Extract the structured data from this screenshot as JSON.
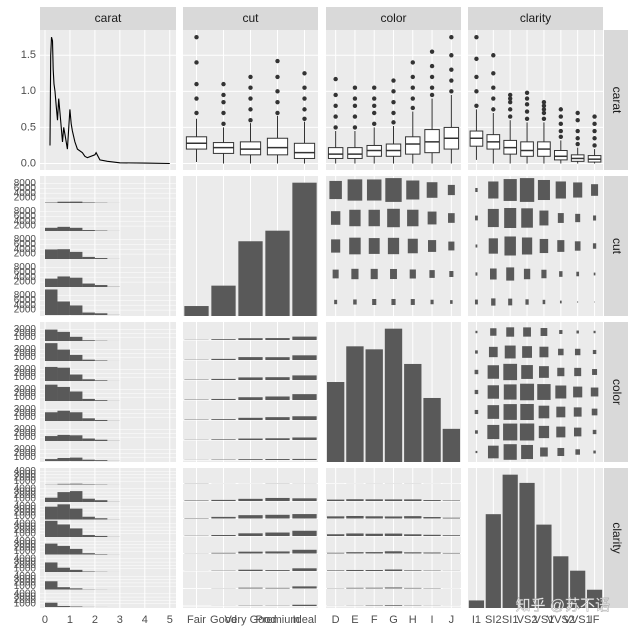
{
  "chart_data": {
    "type": "pairs",
    "variables": [
      "carat",
      "cut",
      "color",
      "clarity"
    ],
    "levels": {
      "cut": [
        "Fair",
        "Good",
        "Very Good",
        "Premium",
        "Ideal"
      ],
      "color": [
        "D",
        "E",
        "F",
        "G",
        "H",
        "I",
        "J"
      ],
      "clarity": [
        "I1",
        "SI2",
        "SI1",
        "VS2",
        "VS1",
        "VVS2",
        "VVS1",
        "IF"
      ]
    },
    "carat_axis": {
      "xlim": [
        -0.2,
        5.25
      ],
      "xticks": [
        0,
        1,
        2,
        3,
        4,
        5
      ]
    },
    "density": {
      "x": [
        0.2,
        0.23,
        0.26,
        0.3,
        0.33,
        0.36,
        0.4,
        0.45,
        0.5,
        0.55,
        0.6,
        0.7,
        0.75,
        0.8,
        0.9,
        1.0,
        1.05,
        1.1,
        1.2,
        1.3,
        1.5,
        1.6,
        1.7,
        2.0,
        2.05,
        2.2,
        2.5,
        3,
        4,
        5
      ],
      "y": [
        0.25,
        1.5,
        1.75,
        1.7,
        1.3,
        1.1,
        1.0,
        0.8,
        0.6,
        0.9,
        0.7,
        0.3,
        0.5,
        0.4,
        0.2,
        0.75,
        0.55,
        0.45,
        0.3,
        0.2,
        0.15,
        0.1,
        0.08,
        0.12,
        0.15,
        0.05,
        0.03,
        0.01,
        0.005,
        0
      ],
      "ylim": [
        -0.09,
        1.85
      ],
      "yticks": [
        {
          "value": 0,
          "label": "0.0"
        },
        0.5,
        {
          "value": 1,
          "label": "1.0"
        },
        1.5
      ]
    },
    "boxplots": {
      "cut": [
        {
          "q1": 0.2,
          "median": 0.28,
          "q3": 0.37,
          "low": 0.02,
          "high": 0.62,
          "outliers": [
            0.7,
            0.9,
            1.1,
            1.4,
            1.75
          ]
        },
        {
          "q1": 0.14,
          "median": 0.22,
          "q3": 0.29,
          "low": 0,
          "high": 0.5,
          "outliers": [
            0.55,
            0.7,
            0.85,
            0.95,
            1.1
          ]
        },
        {
          "q1": 0.12,
          "median": 0.2,
          "q3": 0.3,
          "low": 0,
          "high": 0.56,
          "outliers": [
            0.6,
            0.75,
            0.9,
            1.05,
            1.2
          ]
        },
        {
          "q1": 0.12,
          "median": 0.22,
          "q3": 0.35,
          "low": 0,
          "high": 0.66,
          "outliers": [
            0.7,
            0.85,
            1.0,
            1.2,
            1.42
          ]
        },
        {
          "q1": 0.07,
          "median": 0.15,
          "q3": 0.28,
          "low": 0,
          "high": 0.58,
          "outliers": [
            0.62,
            0.75,
            0.9,
            1.05,
            1.25
          ]
        }
      ],
      "color": [
        {
          "q1": 0.07,
          "median": 0.13,
          "q3": 0.22,
          "low": 0,
          "high": 0.45,
          "outliers": [
            0.5,
            0.65,
            0.8,
            0.95,
            1.17
          ]
        },
        {
          "q1": 0.07,
          "median": 0.13,
          "q3": 0.22,
          "low": 0,
          "high": 0.45,
          "outliers": [
            0.5,
            0.65,
            0.8,
            0.9,
            1.05
          ]
        },
        {
          "q1": 0.1,
          "median": 0.18,
          "q3": 0.25,
          "low": 0,
          "high": 0.5,
          "outliers": [
            0.55,
            0.7,
            0.8,
            0.9,
            1.05
          ]
        },
        {
          "q1": 0.1,
          "median": 0.18,
          "q3": 0.27,
          "low": 0,
          "high": 0.52,
          "outliers": [
            0.57,
            0.7,
            0.85,
            1.0,
            1.15
          ]
        },
        {
          "q1": 0.13,
          "median": 0.27,
          "q3": 0.37,
          "low": 0,
          "high": 0.72,
          "outliers": [
            0.77,
            0.9,
            1.05,
            1.2,
            1.4
          ]
        },
        {
          "q1": 0.15,
          "median": 0.3,
          "q3": 0.47,
          "low": 0,
          "high": 0.9,
          "outliers": [
            0.95,
            1.05,
            1.2,
            1.35,
            1.55
          ]
        },
        {
          "q1": 0.2,
          "median": 0.35,
          "q3": 0.5,
          "low": 0,
          "high": 0.95,
          "outliers": [
            1.0,
            1.15,
            1.3,
            1.5,
            1.75
          ]
        }
      ],
      "clarity": [
        {
          "q1": 0.24,
          "median": 0.35,
          "q3": 0.45,
          "low": 0.05,
          "high": 0.75,
          "outliers": [
            0.8,
            1.0,
            1.2,
            1.45,
            1.75
          ]
        },
        {
          "q1": 0.2,
          "median": 0.3,
          "q3": 0.4,
          "low": 0,
          "high": 0.7,
          "outliers": [
            0.75,
            0.9,
            1.05,
            1.25,
            1.5
          ]
        },
        {
          "q1": 0.13,
          "median": 0.22,
          "q3": 0.32,
          "low": 0,
          "high": 0.6,
          "outliers": [
            0.65,
            0.75,
            0.85,
            0.9,
            0.95
          ]
        },
        {
          "q1": 0.1,
          "median": 0.18,
          "q3": 0.3,
          "low": 0,
          "high": 0.57,
          "outliers": [
            0.62,
            0.72,
            0.82,
            0.9,
            0.98
          ]
        },
        {
          "q1": 0.1,
          "median": 0.2,
          "q3": 0.3,
          "low": 0,
          "high": 0.57,
          "outliers": [
            0.62,
            0.7,
            0.75,
            0.8,
            0.85
          ]
        },
        {
          "q1": 0.05,
          "median": 0.1,
          "q3": 0.18,
          "low": 0,
          "high": 0.32,
          "outliers": [
            0.37,
            0.45,
            0.55,
            0.65,
            0.75
          ]
        },
        {
          "q1": 0.03,
          "median": 0.07,
          "q3": 0.12,
          "low": 0,
          "high": 0.22,
          "outliers": [
            0.27,
            0.35,
            0.45,
            0.6,
            0.7
          ]
        },
        {
          "q1": 0.02,
          "median": 0.06,
          "q3": 0.11,
          "low": 0,
          "high": 0.2,
          "outliers": [
            0.25,
            0.35,
            0.45,
            0.55,
            0.65
          ]
        }
      ]
    },
    "counts": {
      "cut": [
        1610,
        4906,
        12082,
        13791,
        21551
      ],
      "color": [
        6775,
        9797,
        9542,
        11292,
        8304,
        5422,
        2808
      ],
      "clarity": [
        741,
        9194,
        13065,
        12258,
        8171,
        5066,
        3655,
        1790
      ]
    },
    "count_ylim": {
      "cut": [
        0,
        22630
      ],
      "color": [
        0,
        11857
      ],
      "clarity": [
        0,
        13718
      ]
    },
    "histograms": {
      "bins": [
        0,
        0.5,
        1,
        1.5,
        2,
        2.5,
        3
      ],
      "cut": [
        [
          180,
          520,
          560,
          220,
          110,
          20
        ],
        [
          1300,
          1700,
          1300,
          400,
          180,
          26
        ],
        [
          3900,
          4000,
          2900,
          850,
          400,
          32
        ],
        [
          3400,
          4300,
          3800,
          1400,
          800,
          91
        ],
        [
          10400,
          5500,
          3900,
          1000,
          700,
          51
        ]
      ],
      "color": [
        [
          3000,
          2400,
          1100,
          200,
          70,
          5
        ],
        [
          4700,
          3000,
          1600,
          350,
          140,
          7
        ],
        [
          3700,
          3500,
          1700,
          450,
          180,
          12
        ],
        [
          4300,
          3700,
          2500,
          550,
          220,
          22
        ],
        [
          2300,
          2700,
          2300,
          700,
          270,
          34
        ],
        [
          1300,
          1600,
          1500,
          650,
          330,
          42
        ],
        [
          500,
          800,
          900,
          350,
          230,
          28
        ]
      ],
      "clarity": [
        [
          50,
          200,
          250,
          140,
          90,
          11
        ],
        [
          1300,
          3000,
          3300,
          1000,
          550,
          44
        ],
        [
          3900,
          4600,
          3300,
          850,
          380,
          35
        ],
        [
          4900,
          3800,
          2600,
          600,
          320,
          38
        ],
        [
          3300,
          2600,
          1700,
          400,
          150,
          21
        ],
        [
          2900,
          1300,
          650,
          150,
          60,
          6
        ],
        [
          2500,
          700,
          350,
          70,
          30,
          5
        ],
        [
          1300,
          300,
          150,
          30,
          10,
          0
        ]
      ]
    },
    "hist_ylim": {
      "cut": [
        0,
        11000
      ],
      "color": [
        0,
        5000
      ],
      "clarity": [
        0,
        5000
      ]
    },
    "hist_yticks": {
      "cut": [
        2000,
        4000,
        6000,
        8000
      ],
      "color": [
        1000,
        2000,
        3000
      ],
      "clarity": [
        1000,
        2000,
        3000,
        4000
      ]
    },
    "crosstab": {
      "cut_color": [
        [
          163,
          224,
          312,
          314,
          303,
          175,
          119
        ],
        [
          662,
          933,
          909,
          871,
          702,
          522,
          307
        ],
        [
          1513,
          2400,
          2164,
          2299,
          1824,
          1204,
          678
        ],
        [
          1603,
          2337,
          2331,
          2924,
          2360,
          1428,
          808
        ],
        [
          2834,
          3903,
          3826,
          4884,
          3115,
          2093,
          896
        ]
      ],
      "cut_clarity": [
        [
          210,
          466,
          408,
          261,
          170,
          69,
          17,
          9
        ],
        [
          96,
          1081,
          1560,
          978,
          648,
          286,
          186,
          71
        ],
        [
          84,
          2100,
          3240,
          2591,
          1775,
          1235,
          789,
          268
        ],
        [
          205,
          2949,
          3575,
          3357,
          1989,
          870,
          616,
          230
        ],
        [
          146,
          2598,
          4282,
          5071,
          3589,
          2606,
          2047,
          1212
        ]
      ],
      "color_clarity": [
        [
          42,
          1370,
          2083,
          1697,
          705,
          553,
          252,
          73
        ],
        [
          102,
          1713,
          2426,
          2470,
          1281,
          991,
          656,
          158
        ],
        [
          143,
          1609,
          2131,
          2201,
          1364,
          975,
          734,
          385
        ],
        [
          150,
          1548,
          1976,
          2347,
          2148,
          1443,
          999,
          681
        ],
        [
          162,
          1563,
          2275,
          1643,
          1169,
          608,
          585,
          299
        ],
        [
          92,
          912,
          1424,
          1169,
          962,
          365,
          355,
          143
        ],
        [
          50,
          479,
          750,
          731,
          542,
          131,
          74,
          51
        ]
      ]
    },
    "facet_bar_ylim": [
      0,
      15000
    ],
    "colors": {
      "panel": "#ebebeb",
      "strip": "#d9d9d9",
      "mark": "#595959"
    },
    "watermark": "知乎 @苏不语"
  }
}
